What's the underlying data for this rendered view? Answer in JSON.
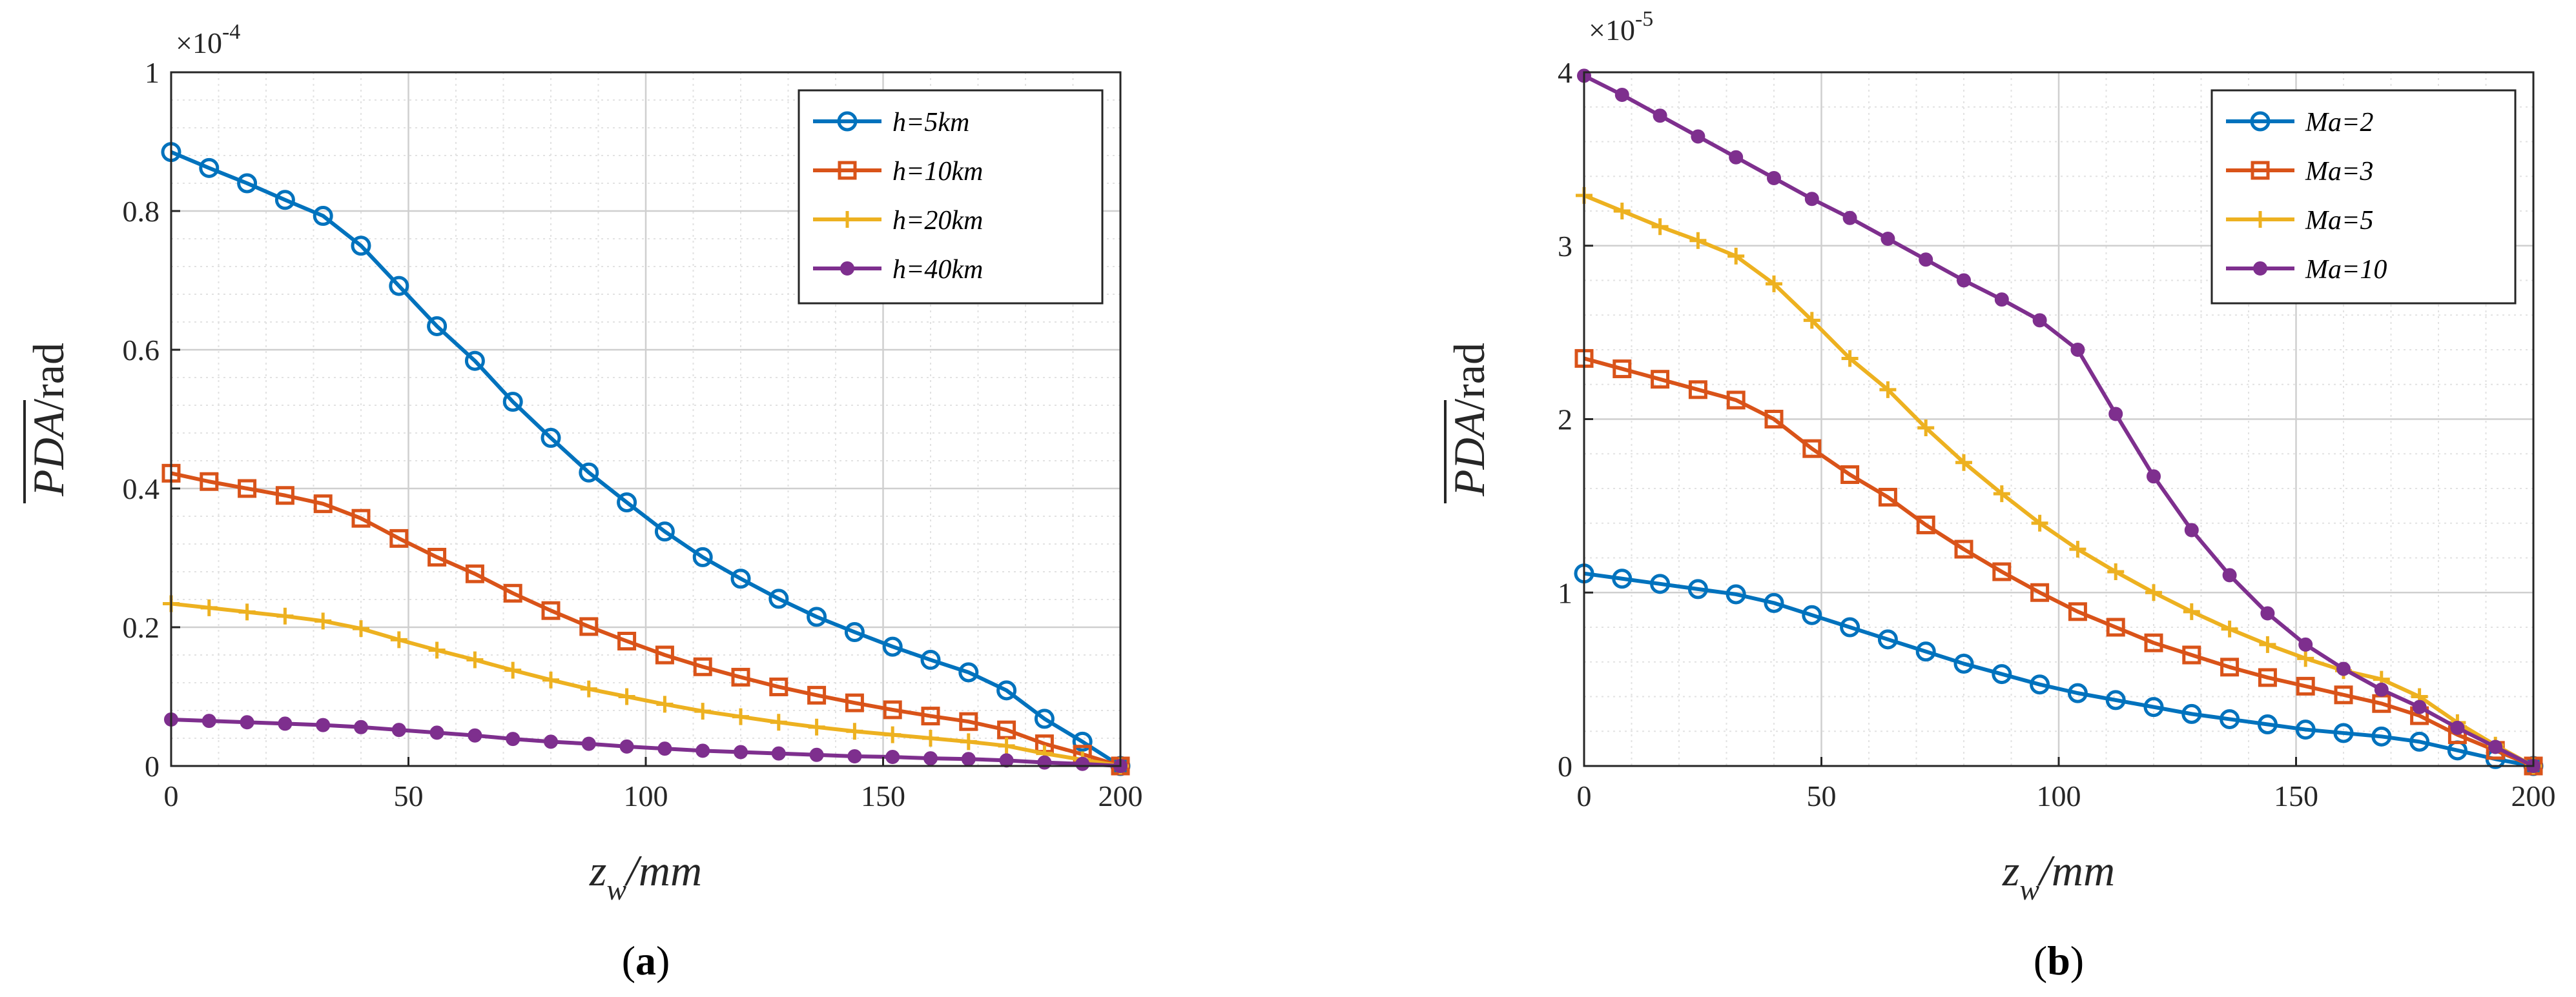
{
  "chart_data": [
    {
      "type": "line",
      "caption": "a",
      "xlabel": "z",
      "xlabel_sub": "w",
      "xlabel_unit": "/mm",
      "ylabel": "PDA",
      "ylabel_unit": "/rad",
      "exponent_base": "×10",
      "exponent_power": "-4",
      "xlim": [
        0,
        200
      ],
      "ylim": [
        0,
        1
      ],
      "xticks": [
        0,
        50,
        100,
        150,
        200
      ],
      "yticks": [
        0,
        0.2,
        0.4,
        0.6,
        0.8,
        1
      ],
      "ytick_labels": [
        "0",
        "0.2",
        "0.4",
        "0.6",
        "0.8",
        "1"
      ],
      "legend_position": "top-right",
      "grid": true,
      "x": [
        0,
        8,
        16,
        24,
        32,
        40,
        48,
        56,
        64,
        72,
        80,
        88,
        96,
        104,
        112,
        120,
        128,
        136,
        144,
        152,
        160,
        168,
        176,
        184,
        192,
        200
      ],
      "series": [
        {
          "name": "h=5km",
          "marker": "circle",
          "color": "#0072BD",
          "values": [
            0.885,
            0.862,
            0.84,
            0.816,
            0.793,
            0.75,
            0.692,
            0.634,
            0.584,
            0.525,
            0.473,
            0.423,
            0.38,
            0.338,
            0.301,
            0.27,
            0.241,
            0.215,
            0.193,
            0.172,
            0.153,
            0.135,
            0.109,
            0.068,
            0.035,
            0.0
          ]
        },
        {
          "name": "h=10km",
          "marker": "square",
          "color": "#D95319",
          "values": [
            0.422,
            0.41,
            0.4,
            0.39,
            0.378,
            0.357,
            0.328,
            0.301,
            0.277,
            0.249,
            0.224,
            0.201,
            0.18,
            0.16,
            0.143,
            0.128,
            0.114,
            0.102,
            0.091,
            0.081,
            0.072,
            0.064,
            0.052,
            0.032,
            0.017,
            0.0
          ]
        },
        {
          "name": "h=20km",
          "marker": "plus",
          "color": "#EDB120",
          "values": [
            0.234,
            0.228,
            0.222,
            0.216,
            0.209,
            0.198,
            0.182,
            0.167,
            0.153,
            0.138,
            0.124,
            0.111,
            0.1,
            0.089,
            0.079,
            0.071,
            0.063,
            0.056,
            0.05,
            0.045,
            0.04,
            0.035,
            0.029,
            0.018,
            0.009,
            0.0
          ]
        },
        {
          "name": "h=40km",
          "marker": "dot",
          "color": "#7E2F8E",
          "values": [
            0.067,
            0.065,
            0.063,
            0.061,
            0.059,
            0.056,
            0.052,
            0.048,
            0.044,
            0.039,
            0.035,
            0.032,
            0.028,
            0.025,
            0.022,
            0.02,
            0.018,
            0.016,
            0.014,
            0.013,
            0.011,
            0.01,
            0.008,
            0.005,
            0.003,
            0.0
          ]
        }
      ]
    },
    {
      "type": "line",
      "caption": "b",
      "xlabel": "z",
      "xlabel_sub": "w",
      "xlabel_unit": "/mm",
      "ylabel": "PDA",
      "ylabel_unit": "/rad",
      "exponent_base": "×10",
      "exponent_power": "-5",
      "xlim": [
        0,
        200
      ],
      "ylim": [
        0,
        4
      ],
      "xticks": [
        0,
        50,
        100,
        150,
        200
      ],
      "yticks": [
        0,
        1,
        2,
        3,
        4
      ],
      "ytick_labels": [
        "0",
        "1",
        "2",
        "3",
        "4"
      ],
      "legend_position": "top-right",
      "grid": true,
      "x": [
        0,
        8,
        16,
        24,
        32,
        40,
        48,
        56,
        64,
        72,
        80,
        88,
        96,
        104,
        112,
        120,
        128,
        136,
        144,
        152,
        160,
        168,
        176,
        184,
        192,
        200
      ],
      "series": [
        {
          "name": "Ma=2",
          "marker": "circle",
          "color": "#0072BD",
          "values": [
            1.11,
            1.08,
            1.05,
            1.02,
            0.99,
            0.94,
            0.87,
            0.8,
            0.73,
            0.66,
            0.59,
            0.53,
            0.47,
            0.42,
            0.38,
            0.34,
            0.3,
            0.27,
            0.24,
            0.21,
            0.19,
            0.17,
            0.14,
            0.09,
            0.04,
            0.0
          ]
        },
        {
          "name": "Ma=3",
          "marker": "square",
          "color": "#D95319",
          "values": [
            2.35,
            2.29,
            2.23,
            2.17,
            2.11,
            2.0,
            1.83,
            1.68,
            1.55,
            1.39,
            1.25,
            1.12,
            1.0,
            0.89,
            0.8,
            0.71,
            0.64,
            0.57,
            0.51,
            0.46,
            0.41,
            0.36,
            0.29,
            0.18,
            0.09,
            0.0
          ]
        },
        {
          "name": "Ma=5",
          "marker": "plus",
          "color": "#EDB120",
          "values": [
            3.29,
            3.2,
            3.11,
            3.03,
            2.94,
            2.78,
            2.57,
            2.35,
            2.17,
            1.95,
            1.75,
            1.57,
            1.4,
            1.25,
            1.12,
            1.0,
            0.89,
            0.79,
            0.7,
            0.62,
            0.55,
            0.5,
            0.4,
            0.25,
            0.12,
            0.0
          ]
        },
        {
          "name": "Ma=10",
          "marker": "dot",
          "color": "#7E2F8E",
          "values": [
            3.98,
            3.87,
            3.75,
            3.63,
            3.51,
            3.39,
            3.27,
            3.16,
            3.04,
            2.92,
            2.8,
            2.69,
            2.57,
            2.4,
            2.03,
            1.67,
            1.36,
            1.1,
            0.88,
            0.7,
            0.56,
            0.44,
            0.34,
            0.22,
            0.11,
            0.0
          ]
        }
      ]
    }
  ]
}
